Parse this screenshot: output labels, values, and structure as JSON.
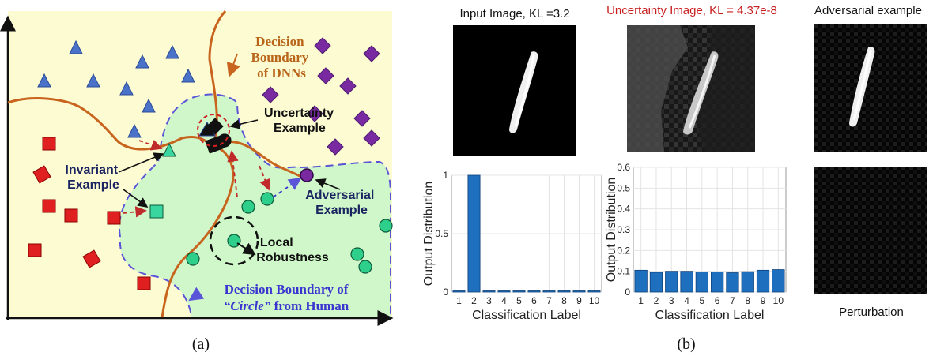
{
  "panel_a": {
    "caption": "(a)",
    "labels": {
      "dnn_boundary": [
        "Decision",
        "Boundary",
        "of DNNs"
      ],
      "uncertainty": [
        "Uncertainty",
        "Example"
      ],
      "invariant": [
        "Invariant",
        "Example"
      ],
      "adversarial": [
        "Adversarial",
        "Example"
      ],
      "local_robustness": [
        "Local",
        "Robustness"
      ],
      "human_boundary_line1": "Decision Boundary of",
      "human_boundary_circle": "“Circle”",
      "human_boundary_rest": " from Human"
    },
    "colors": {
      "background": "#fdfbd2",
      "human_region": "#cff7c9",
      "dnn_boundary": "#c8641e",
      "human_boundary": "#5a55d8",
      "triangle": "#4a72c8",
      "square": "#e02020",
      "diamond": "#7a2aa0",
      "circle": "#2ecf8a",
      "label_dark": "#1a2460",
      "label_brown": "#b8651a",
      "label_purple": "#3a34d0"
    }
  },
  "panel_b": {
    "caption": "(b)",
    "titles": {
      "input": "Input Image, KL =3.2",
      "uncertainty": "Uncertainty Image, KL = 4.37e-8",
      "adversarial": "Adversarial example",
      "perturbation": "Perturbation"
    },
    "title_colors": {
      "input": "#111111",
      "uncertainty": "#c81e1e",
      "adversarial": "#111111"
    },
    "bar_color": "#1f6fbf"
  },
  "chart_data": [
    {
      "type": "bar",
      "categories": [
        "1",
        "2",
        "3",
        "4",
        "5",
        "6",
        "7",
        "8",
        "9",
        "10"
      ],
      "values": [
        0,
        1,
        0,
        0,
        0,
        0,
        0,
        0,
        0,
        0
      ],
      "xlabel": "Classification Label",
      "ylabel": "Output Distribution",
      "ylim": [
        0,
        1
      ],
      "yticks": [
        "0",
        "0.5",
        "1"
      ],
      "grid": true
    },
    {
      "type": "bar",
      "categories": [
        "1",
        "2",
        "3",
        "4",
        "5",
        "6",
        "7",
        "8",
        "9",
        "10"
      ],
      "values": [
        0.105,
        0.095,
        0.1,
        0.1,
        0.097,
        0.097,
        0.093,
        0.098,
        0.105,
        0.108
      ],
      "xlabel": "Classification Label",
      "ylabel": "Output Distribution",
      "ylim": [
        0,
        0.6
      ],
      "yticks": [
        "0",
        "0.1",
        "0.2",
        "0.3",
        "0.4",
        "0.5",
        "0.6"
      ],
      "grid": true
    }
  ]
}
